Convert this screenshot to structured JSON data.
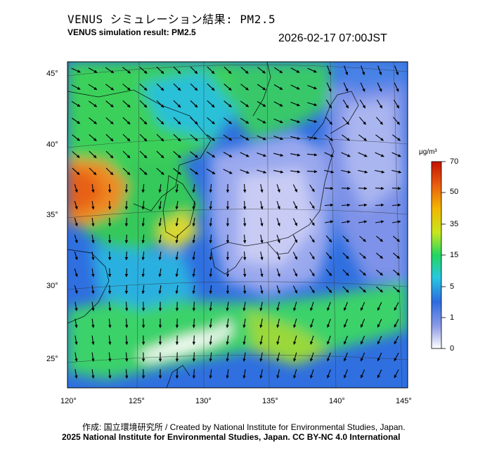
{
  "title_jp": "VENUS シミュレーション結果: PM2.5",
  "title_en": "VENUS simulation result: PM2.5",
  "timestamp": "2026-02-17 07:00JST",
  "lat_ticks": [
    "45°",
    "40°",
    "35°",
    "30°",
    "25°"
  ],
  "lon_ticks": [
    "120°",
    "125°",
    "130°",
    "135°",
    "140°",
    "145°"
  ],
  "colorbar": {
    "unit": "μg/m³",
    "labels": [
      "70",
      "50",
      "35",
      "15",
      "5",
      "1",
      "0"
    ],
    "colors": [
      "#ffffff",
      "#8c9be6",
      "#2d6be0",
      "#27c8e0",
      "#23d660",
      "#c8e61e",
      "#f2b600",
      "#e85a10",
      "#c41200"
    ]
  },
  "credit": "作成: 国立環境研究所 / Created by National Institute for Environmental Studies, Japan.",
  "license": "2025 National Institute for Environmental Studies, Japan. CC BY-NC 4.0 International"
}
